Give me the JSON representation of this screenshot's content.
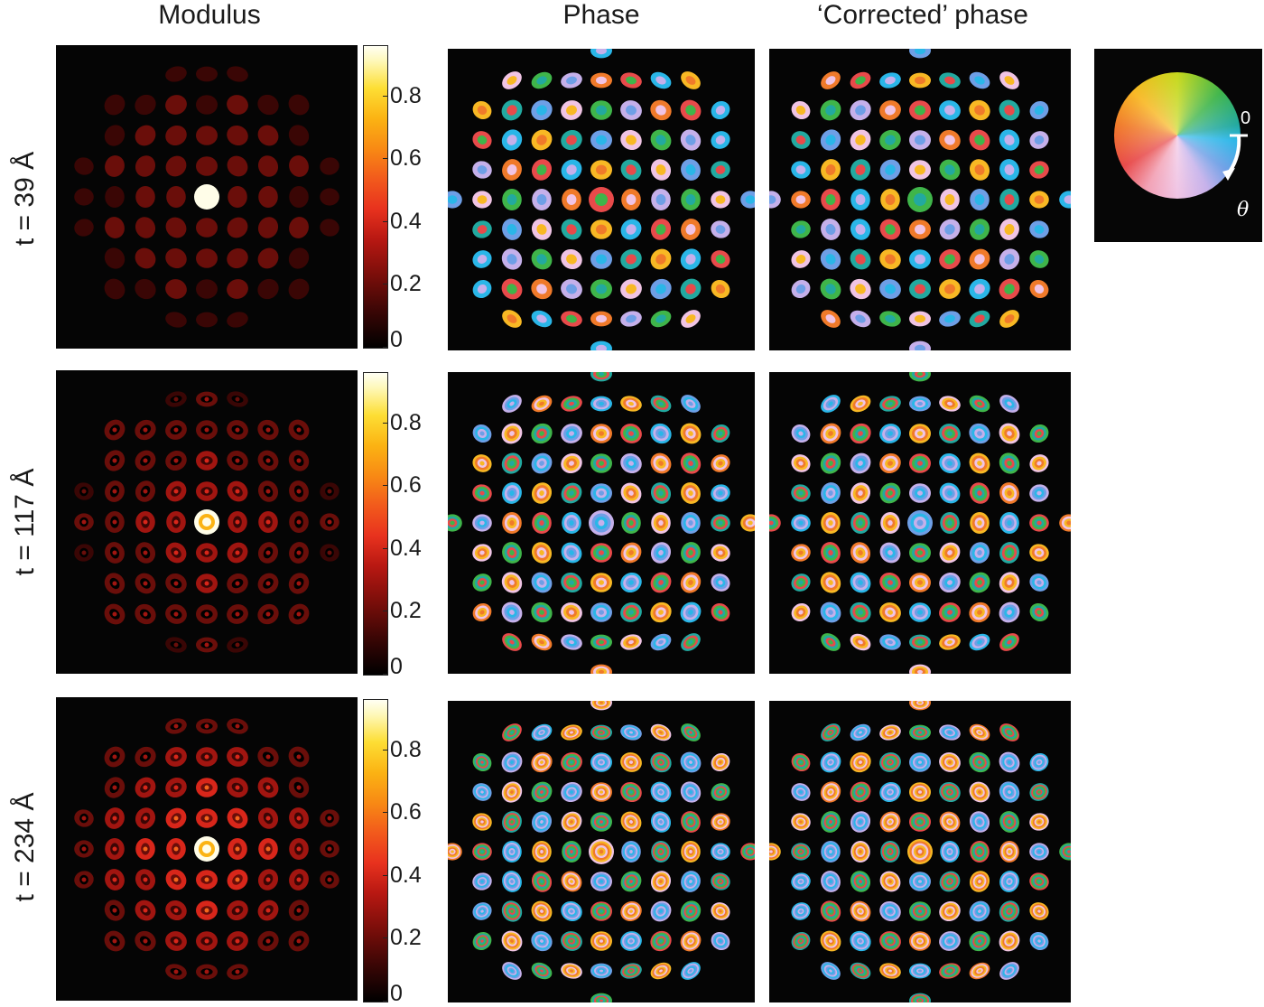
{
  "columns": {
    "modulus": "Modulus",
    "phase": "Phase",
    "corrected": "‘Corrected’ phase"
  },
  "rows": [
    {
      "label": "t = 39 Å"
    },
    {
      "label": "t = 117 Å"
    },
    {
      "label": "t = 234 Å"
    }
  ],
  "colorbar": {
    "ticks": [
      "0.8",
      "0.6",
      "0.4",
      "0.2",
      "0"
    ],
    "tick_values": [
      0.8,
      0.6,
      0.4,
      0.2,
      0
    ],
    "max_value": 0.96,
    "colormap": "hot"
  },
  "phase_wheel": {
    "zero_label": "0",
    "theta_label": "θ",
    "colors": [
      "#2ab6e8",
      "#c5b0ea",
      "#f0c4e4",
      "#e84a4a",
      "#f8b824",
      "#c6d81c",
      "#3fb54a",
      "#22a9a0"
    ]
  },
  "pattern": {
    "grid": 9,
    "modulus_palette": [
      "#000000",
      "#3a0605",
      "#6a0e0a",
      "#a11510",
      "#d8261a",
      "#f5661c",
      "#fbb313",
      "#fde86a",
      "#fffde8"
    ],
    "phase_palette": [
      "#e84a4a",
      "#f0c4e4",
      "#2ab6e8",
      "#3fb54a",
      "#f8b824",
      "#c5b0ea",
      "#22a9a0",
      "#f07a2a",
      "#6e9fe6"
    ]
  }
}
